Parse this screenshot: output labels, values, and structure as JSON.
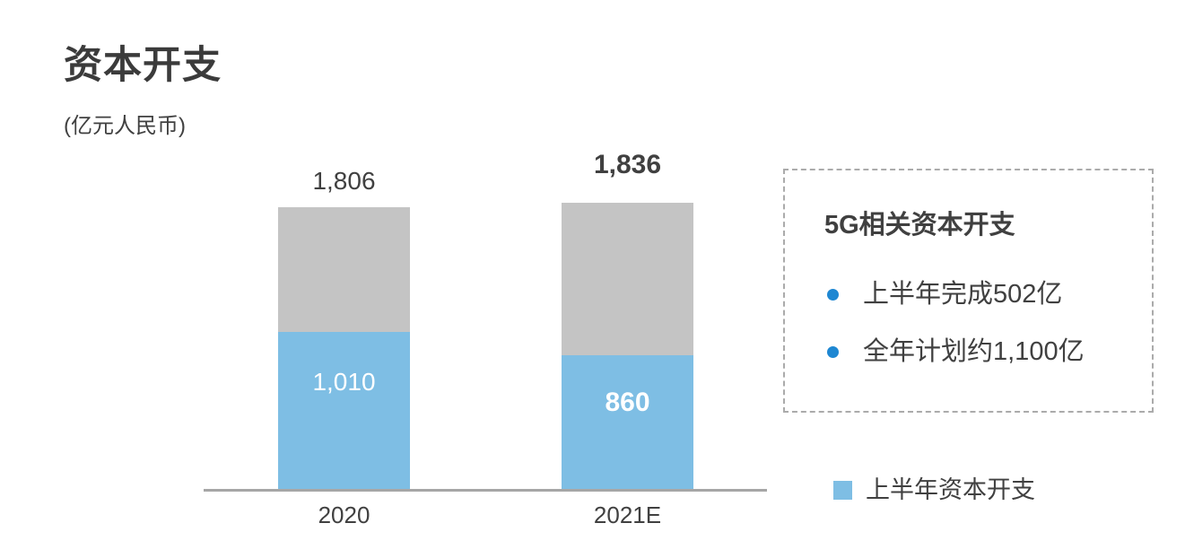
{
  "header": {
    "title": "资本开支",
    "unit": "(亿元人民币)"
  },
  "chart_data": {
    "type": "bar",
    "subtype": "stacked-column",
    "title": "资本开支",
    "unit_label": "(亿元人民币)",
    "categories": [
      "2020",
      "2021E"
    ],
    "series": [
      {
        "name": "上半年资本开支",
        "values": [
          1010,
          860
        ],
        "value_labels": [
          "1,010",
          "860"
        ],
        "color": "#7ebee4"
      }
    ],
    "totals": {
      "values": [
        1806,
        1836
      ],
      "labels": [
        "1,806",
        "1,836"
      ]
    },
    "remainder_color": "#c4c4c4",
    "axis_color": "#a6a6a6",
    "grid": false,
    "legend_position": "bottom-right",
    "emphasized_category": "2021E"
  },
  "callout": {
    "title": "5G相关资本开支",
    "bullets": [
      "上半年完成502亿",
      "全年计划约1,100亿"
    ],
    "bullet_color": "#1e87d2"
  },
  "legend": {
    "label": "上半年资本开支",
    "swatch_color": "#7ebee4"
  }
}
